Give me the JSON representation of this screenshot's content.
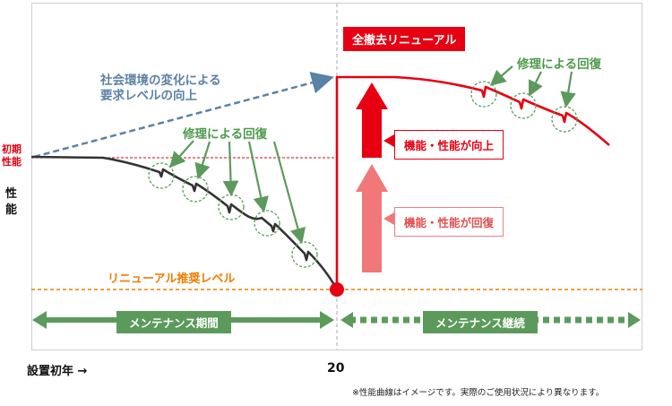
{
  "left_axis": {
    "initial_performance": "初期\n性能",
    "y_label": "性\n能"
  },
  "x_axis": {
    "start_label": "設置初年 →",
    "year_20": "20"
  },
  "annotations": {
    "full_renewal": "全撤去リニューアル",
    "social_demand": "社会環境の変化による\n要求レベルの向上",
    "repair_recovery_left": "修理による回復",
    "repair_recovery_right": "修理による回復",
    "function_improved": "機能・性能が向上",
    "function_recovered": "機能・性能が回復",
    "renewal_level": "リニューアル推奨レベル",
    "maintenance_period": "メンテナンス期間",
    "maintenance_continued": "メンテナンス継続"
  },
  "footnote": "※性能曲線はイメージです。実際のご使用状況により異なります。",
  "colors": {
    "red": "#e60012",
    "green": "#5c9a5c",
    "blue": "#5a81a6",
    "orange": "#ef7d00",
    "dark": "#333333"
  }
}
